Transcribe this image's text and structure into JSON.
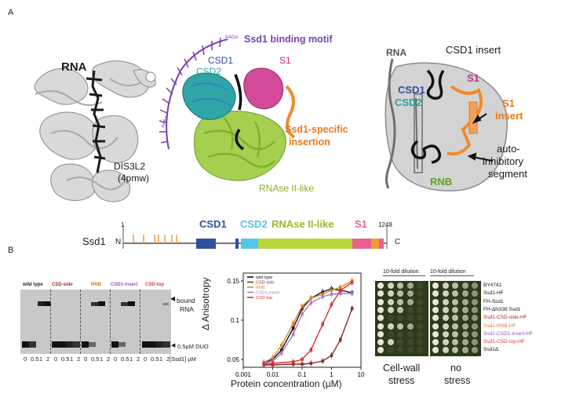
{
  "panelA": {
    "letter": "A",
    "structure1": {
      "rna_label": "RNA",
      "protein_label": "DIS3L2",
      "pdb_label": "(4pmw)"
    },
    "structure2": {
      "motif_label": "Ssd1 binding motif",
      "motif_seq_right": "AAGA",
      "motif_seq_left": "AAAA",
      "csd1": "CSD1",
      "csd2": "CSD2",
      "s1": "S1",
      "insertion_line1": "Ssd1-specific",
      "insertion_line2": "insertion",
      "rnase_label": "RNAse II-like"
    },
    "schematic": {
      "rna": "RNA",
      "csd1_insert": "CSD1 insert",
      "csd1": "CSD1",
      "csd2": "CSD2",
      "s1": "S1",
      "s1_insert_1": "S1",
      "s1_insert_2": "insert",
      "auto_1": "auto-",
      "auto_2": "inhibitory",
      "auto_3": "segment",
      "rnb": "RNB"
    },
    "domain_map": {
      "protein": "Ssd1",
      "n_term": "N",
      "c_term": "C",
      "start": "1",
      "end": "1248",
      "csd1": "CSD1",
      "csd2": "CSD2",
      "rnase": "RNAse II-like",
      "s1": "S1",
      "colors": {
        "csd1": "#2f4f9f",
        "csd2": "#55c6e8",
        "rnase": "#b9d63a",
        "s1": "#e8628c",
        "insert": "#f29a3a",
        "motif_tick": "#f29a3a"
      }
    }
  },
  "panelB": {
    "letter": "B",
    "gel": {
      "lanes": [
        "wild type",
        "CSD-side",
        "RNB",
        "CSD1-insert",
        "CSD-top"
      ],
      "lane_colors": [
        "#222222",
        "#9e2a2a",
        "#e07a1e",
        "#8e5ab8",
        "#d83a3a"
      ],
      "bound_1": "bound",
      "bound_2": "RNA",
      "free_label": "0.5µM DUO",
      "conc_ticks": [
        "0",
        "0.5",
        "1",
        "2"
      ],
      "conc_unit": "[Ssd1] µM"
    },
    "binding_chart": {
      "chart_data": {
        "type": "scatter",
        "xlabel": "Protein concentration (µM)",
        "ylabel": "Δ Anisotropy",
        "x_scale": "log",
        "xlim": [
          0.001,
          10
        ],
        "ylim": [
          0.04,
          0.16
        ],
        "x_ticks": [
          "0.001",
          "0.01",
          "0.1",
          "1",
          "10"
        ],
        "y_ticks": [
          "0.05",
          "0.1",
          "0.15"
        ],
        "legend_position": "top-left",
        "series": [
          {
            "name": "wild type",
            "color": "#111111",
            "x": [
              0.005,
              0.01,
              0.02,
              0.05,
              0.1,
              0.2,
              0.5,
              1,
              2,
              5
            ],
            "y": [
              0.046,
              0.05,
              0.062,
              0.09,
              0.115,
              0.128,
              0.136,
              0.14,
              0.138,
              0.135
            ]
          },
          {
            "name": "CSD-side",
            "color": "#8a2a2a",
            "x": [
              0.005,
              0.01,
              0.05,
              0.1,
              0.2,
              0.5,
              1,
              2,
              5
            ],
            "y": [
              0.043,
              0.043,
              0.044,
              0.044,
              0.045,
              0.048,
              0.055,
              0.075,
              0.115
            ]
          },
          {
            "name": "RNB",
            "color": "#e8822a",
            "x": [
              0.005,
              0.01,
              0.02,
              0.05,
              0.1,
              0.2,
              0.5,
              1,
              2,
              5
            ],
            "y": [
              0.046,
              0.052,
              0.068,
              0.096,
              0.118,
              0.128,
              0.133,
              0.138,
              0.142,
              0.15
            ]
          },
          {
            "name": "CSD1-insert",
            "color": "#a77ad0",
            "x": [
              0.005,
              0.01,
              0.02,
              0.05,
              0.1,
              0.2,
              0.5,
              1,
              2,
              5
            ],
            "y": [
              0.045,
              0.048,
              0.058,
              0.082,
              0.108,
              0.122,
              0.13,
              0.133,
              0.134,
              0.134
            ]
          },
          {
            "name": "CSD-top",
            "color": "#d83030",
            "x": [
              0.005,
              0.01,
              0.05,
              0.1,
              0.2,
              0.5,
              1,
              2,
              5
            ],
            "y": [
              0.044,
              0.045,
              0.047,
              0.05,
              0.062,
              0.095,
              0.12,
              0.138,
              0.148
            ]
          }
        ]
      }
    },
    "spot_assay": {
      "header_left": "10-fold dilution",
      "header_right": "10-fold dilution",
      "strains": [
        {
          "label": "BY4741",
          "color": "#111111"
        },
        {
          "label": "Ssd1-HF",
          "color": "#111111"
        },
        {
          "label": "FH-Ssd1",
          "color": "#111111"
        },
        {
          "label": "FH-ΔN338 Ssd1",
          "color": "#111111"
        },
        {
          "label": "Ssd1-CSD-side-HF",
          "color": "#9e2a2a"
        },
        {
          "label": "Ssd1-RNB-HF",
          "color": "#e07a1e"
        },
        {
          "label": "Ssd1-CSD1-insert-HF",
          "color": "#8e5ab8"
        },
        {
          "label": "Ssd1-CSD-top-HF",
          "color": "#d83a3a"
        },
        {
          "label": "Ssd1Δ",
          "color": "#111111"
        }
      ],
      "left_growth": [
        4,
        4,
        4,
        3,
        1,
        4,
        1,
        2,
        1
      ],
      "right_growth": [
        5,
        5,
        5,
        5,
        5,
        5,
        5,
        5,
        5
      ],
      "caption_left_1": "Cell-wall",
      "caption_left_2": "stress",
      "caption_right_1": "no",
      "caption_right_2": "stress"
    }
  }
}
